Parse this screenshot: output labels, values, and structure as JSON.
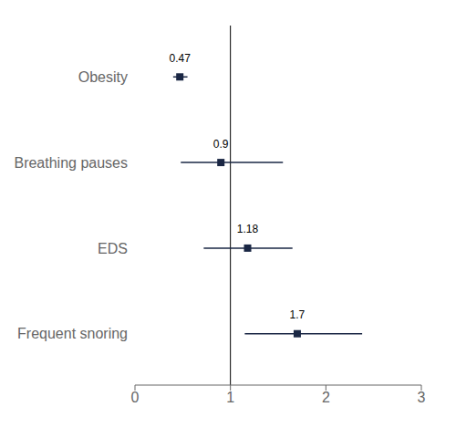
{
  "chart_data": {
    "type": "forest",
    "categories": [
      "Obesity",
      "Breathing pauses",
      "EDS",
      "Frequent snoring"
    ],
    "values": [
      0.47,
      0.9,
      1.18,
      1.7
    ],
    "ci_lower": [
      0.4,
      0.48,
      0.72,
      1.15
    ],
    "ci_upper": [
      0.55,
      1.55,
      1.65,
      2.38
    ],
    "xlim": [
      0,
      3
    ],
    "xticks": [
      0,
      1,
      2,
      3
    ],
    "reference_line": 1.0,
    "color": "#1a2744",
    "marker": "square",
    "data_labels": true
  }
}
